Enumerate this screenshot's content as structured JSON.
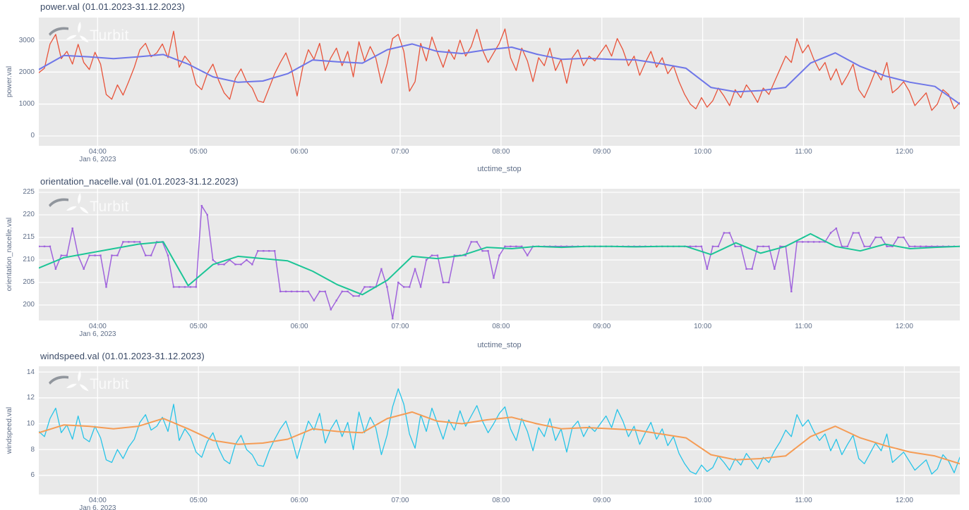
{
  "watermark": "Turbit",
  "style": {
    "plot_bg": "#e9e9e9",
    "grid": "#ffffff",
    "title_color": "#3a4a66",
    "tick_color": "#5f6e88"
  },
  "x_axis": {
    "date_sublabel": "Jan 6, 2023",
    "tick_labels": [
      "04:00",
      "05:00",
      "06:00",
      "07:00",
      "08:00",
      "09:00",
      "10:00",
      "11:00",
      "12:00"
    ]
  },
  "chart_data": [
    {
      "id": "power",
      "type": "line",
      "title": "power.val (01.01.2023-31.12.2023)",
      "ylabel": "power.val",
      "xlabel": "utctime_stop",
      "x_date_sublabel": "Jan 6, 2023",
      "xlim": [
        205,
        753
      ],
      "ylim": [
        -309,
        3706
      ],
      "yticks": [
        0,
        1000,
        2000,
        3000
      ],
      "xticks": [
        {
          "m": 240,
          "label": "04:00"
        },
        {
          "m": 300,
          "label": "05:00"
        },
        {
          "m": 360,
          "label": "06:00"
        },
        {
          "m": 420,
          "label": "07:00"
        },
        {
          "m": 480,
          "label": "08:00"
        },
        {
          "m": 540,
          "label": "09:00"
        },
        {
          "m": 600,
          "label": "10:00"
        },
        {
          "m": 660,
          "label": "11:00"
        },
        {
          "m": 720,
          "label": "12:00"
        }
      ],
      "series": [
        {
          "role": "raw",
          "name": "power.val",
          "color": "#e8533a",
          "width": 1.3,
          "markers": false,
          "values": [
            1980,
            2120,
            2880,
            3180,
            2420,
            2650,
            2250,
            2870,
            2300,
            2080,
            2620,
            2250,
            1300,
            1150,
            1600,
            1280,
            1700,
            2150,
            2700,
            2900,
            2480,
            2600,
            2880,
            2450,
            3280,
            2150,
            2500,
            2280,
            1620,
            1450,
            1950,
            2250,
            1750,
            1350,
            1150,
            1800,
            2100,
            1700,
            1500,
            1100,
            1050,
            1500,
            1950,
            2300,
            2600,
            2100,
            1250,
            2150,
            2700,
            2400,
            2900,
            2050,
            2450,
            2750,
            2200,
            2650,
            1850,
            2950,
            2350,
            2800,
            2450,
            1650,
            2250,
            3050,
            3180,
            2650,
            1400,
            1700,
            2900,
            2350,
            3100,
            2600,
            2150,
            2700,
            2400,
            3000,
            2500,
            2800,
            3340,
            2700,
            2300,
            2600,
            2900,
            3350,
            2450,
            2050,
            2750,
            2350,
            1700,
            2450,
            2200,
            2750,
            2050,
            2400,
            1650,
            2450,
            2700,
            2200,
            2500,
            2350,
            2600,
            2850,
            2500,
            3050,
            2700,
            2200,
            2500,
            1900,
            2300,
            2650,
            2150,
            2450,
            1950,
            2200,
            1700,
            1300,
            1000,
            850,
            1200,
            900,
            1100,
            1500,
            1250,
            950,
            1450,
            1200,
            1600,
            1350,
            1050,
            1500,
            1300,
            1700,
            2100,
            2500,
            2300,
            3050,
            2600,
            2850,
            2400,
            2050,
            2300,
            1750,
            2100,
            1600,
            1900,
            2250,
            1450,
            1200,
            1600,
            2050,
            1750,
            2300,
            1350,
            1500,
            1700,
            1400,
            950,
            1150,
            1350,
            800,
            1000,
            1450,
            1300,
            850,
            1050
          ]
        },
        {
          "role": "trend",
          "name": "power.val (smoothed)",
          "color": "#6e76e8",
          "width": 2,
          "markers": false,
          "values": [
            2080,
            2520,
            2480,
            2420,
            2480,
            2550,
            2250,
            1850,
            1680,
            1720,
            1950,
            2380,
            2320,
            2280,
            2700,
            2880,
            2650,
            2580,
            2700,
            2780,
            2560,
            2400,
            2430,
            2400,
            2380,
            2260,
            2120,
            1520,
            1380,
            1420,
            1520,
            2280,
            2600,
            2180,
            1880,
            1680,
            1550,
            1000
          ]
        }
      ]
    },
    {
      "id": "orientation",
      "type": "line",
      "title": "orientation_nacelle.val (01.01.2023-31.12.2023)",
      "ylabel": "orientation_nacelle.val",
      "xlabel": "utctime_stop",
      "x_date_sublabel": "Jan 6, 2023",
      "xlim": [
        205,
        753
      ],
      "ylim": [
        196.56,
        225.78
      ],
      "yticks": [
        200,
        205,
        210,
        215,
        220,
        225
      ],
      "xticks": [
        {
          "m": 240,
          "label": "04:00"
        },
        {
          "m": 300,
          "label": "05:00"
        },
        {
          "m": 360,
          "label": "06:00"
        },
        {
          "m": 420,
          "label": "07:00"
        },
        {
          "m": 480,
          "label": "08:00"
        },
        {
          "m": 540,
          "label": "09:00"
        },
        {
          "m": 600,
          "label": "10:00"
        },
        {
          "m": 660,
          "label": "11:00"
        },
        {
          "m": 720,
          "label": "12:00"
        }
      ],
      "series": [
        {
          "role": "raw",
          "name": "orientation_nacelle.val",
          "color": "#a064dc",
          "width": 1.5,
          "markers": true,
          "values": [
            213,
            213,
            213,
            208,
            211,
            211,
            217,
            211,
            208,
            211,
            211,
            211,
            204,
            211,
            211,
            214,
            214,
            214,
            214,
            211,
            211,
            214,
            214,
            211,
            204,
            204,
            204,
            204,
            204,
            222,
            220,
            210,
            209,
            209,
            210,
            209,
            209,
            210,
            209,
            212,
            212,
            212,
            212,
            203,
            203,
            203,
            203,
            203,
            203,
            201,
            203,
            203,
            199,
            201,
            203,
            203,
            202,
            202,
            204,
            204,
            204,
            208,
            204,
            197,
            205,
            204,
            204,
            208,
            204,
            210,
            211,
            211,
            205,
            205,
            211,
            211,
            211,
            214,
            214,
            212,
            212,
            206,
            211,
            213,
            213,
            213,
            213,
            211,
            213,
            213,
            213,
            213,
            213,
            213,
            213,
            213,
            213,
            213,
            213,
            213,
            213,
            213,
            213,
            213,
            213,
            213,
            213,
            213,
            213,
            213,
            213,
            213,
            213,
            213,
            213,
            213,
            213,
            213,
            213,
            208,
            213,
            213,
            216,
            216,
            213,
            213,
            208,
            208,
            213,
            213,
            213,
            208,
            213,
            213,
            203,
            214,
            214,
            214,
            214,
            214,
            214,
            216,
            217,
            213,
            213,
            216,
            216,
            213,
            213,
            215,
            215,
            213,
            213,
            215,
            215,
            213,
            213,
            213,
            213,
            213,
            213,
            213,
            213,
            213,
            213
          ]
        },
        {
          "role": "trend",
          "name": "orientation_nacelle.val (smoothed)",
          "color": "#1cc596",
          "width": 2,
          "markers": false,
          "values": [
            208.2,
            210.5,
            211.5,
            212.5,
            213.5,
            214.0,
            204.3,
            209.0,
            210.8,
            210.3,
            209.8,
            207.5,
            204.5,
            202.3,
            205.5,
            210.8,
            210.3,
            211.0,
            212.8,
            212.5,
            213.0,
            212.8,
            213.0,
            213.0,
            212.9,
            213.0,
            213.0,
            211.2,
            213.8,
            211.5,
            213.0,
            215.8,
            213.0,
            212.0,
            213.5,
            212.5,
            212.8,
            213.0
          ]
        }
      ]
    },
    {
      "id": "windspeed",
      "type": "line",
      "title": "windspeed.val (01.01.2023-31.12.2023)",
      "ylabel": "windspeed.val",
      "x_date_sublabel": "Jan 6, 2023",
      "xlim": [
        205,
        753
      ],
      "ylim": [
        4.52,
        14.44
      ],
      "yticks": [
        6,
        8,
        10,
        12,
        14
      ],
      "xticks": [
        {
          "m": 240,
          "label": "04:00"
        },
        {
          "m": 300,
          "label": "05:00"
        },
        {
          "m": 360,
          "label": "06:00"
        },
        {
          "m": 420,
          "label": "07:00"
        },
        {
          "m": 480,
          "label": "08:00"
        },
        {
          "m": 540,
          "label": "09:00"
        },
        {
          "m": 600,
          "label": "10:00"
        },
        {
          "m": 660,
          "label": "11:00"
        },
        {
          "m": 720,
          "label": "12:00"
        }
      ],
      "series": [
        {
          "role": "raw",
          "name": "windspeed.val",
          "color": "#27c4e8",
          "width": 1.3,
          "markers": false,
          "values": [
            9.4,
            9.0,
            10.4,
            11.2,
            9.3,
            9.9,
            8.8,
            10.6,
            8.9,
            8.6,
            9.8,
            8.9,
            7.2,
            7.0,
            8.0,
            7.3,
            8.2,
            8.8,
            10.1,
            10.7,
            9.5,
            9.8,
            10.5,
            9.4,
            11.5,
            8.7,
            9.6,
            9.0,
            7.8,
            7.4,
            8.6,
            9.3,
            8.1,
            7.2,
            6.9,
            8.4,
            9.1,
            8.0,
            7.6,
            6.8,
            6.7,
            7.9,
            8.8,
            9.6,
            10.2,
            8.9,
            7.3,
            8.8,
            10.2,
            9.5,
            10.8,
            8.5,
            9.6,
            10.3,
            9.0,
            10.1,
            8.0,
            10.9,
            9.3,
            10.5,
            9.7,
            7.6,
            9.1,
            11.3,
            12.7,
            11.5,
            9.2,
            8.1,
            10.7,
            9.4,
            11.2,
            10.0,
            8.8,
            10.3,
            9.5,
            11.0,
            9.8,
            10.6,
            11.4,
            10.2,
            9.3,
            10.0,
            10.8,
            11.3,
            9.6,
            8.7,
            10.4,
            9.4,
            7.9,
            9.7,
            9.0,
            10.4,
            8.7,
            9.6,
            7.8,
            9.7,
            10.2,
            9.0,
            9.8,
            9.4,
            10.0,
            10.6,
            9.7,
            11.1,
            10.2,
            9.0,
            9.8,
            8.4,
            9.3,
            10.1,
            8.8,
            9.6,
            8.3,
            9.0,
            7.7,
            6.9,
            6.3,
            6.1,
            6.8,
            6.3,
            6.6,
            7.5,
            7.0,
            6.4,
            7.3,
            6.8,
            7.7,
            7.1,
            6.5,
            7.4,
            7.0,
            7.9,
            8.6,
            9.5,
            9.0,
            10.7,
            9.8,
            10.3,
            9.4,
            8.7,
            9.2,
            7.9,
            8.8,
            7.6,
            8.4,
            9.1,
            7.3,
            6.9,
            7.7,
            8.5,
            7.9,
            9.2,
            7.0,
            7.4,
            7.8,
            7.1,
            6.4,
            6.8,
            7.2,
            6.1,
            6.5,
            7.6,
            7.1,
            6.2,
            7.4
          ]
        },
        {
          "role": "trend",
          "name": "windspeed.val (smoothed)",
          "color": "#f59c55",
          "width": 2,
          "markers": false,
          "values": [
            9.3,
            9.9,
            9.8,
            9.6,
            9.8,
            10.4,
            9.6,
            8.7,
            8.4,
            8.5,
            8.8,
            9.6,
            9.4,
            9.3,
            10.4,
            10.9,
            10.2,
            10.0,
            10.3,
            10.5,
            10.0,
            9.6,
            9.7,
            9.6,
            9.5,
            9.2,
            8.9,
            7.6,
            7.2,
            7.3,
            7.5,
            9.0,
            9.8,
            8.9,
            8.3,
            7.8,
            7.5,
            6.9
          ]
        }
      ]
    }
  ]
}
